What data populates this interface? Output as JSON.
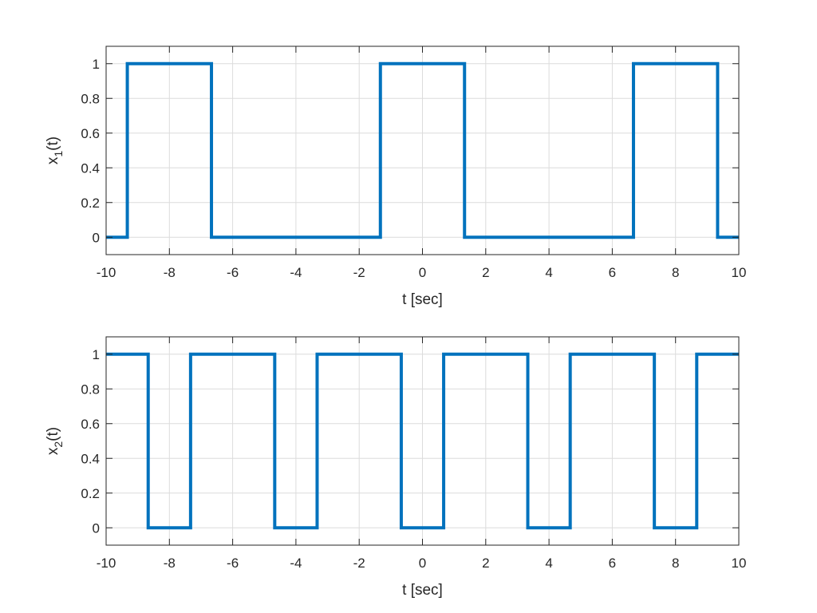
{
  "chart_data": [
    {
      "type": "line",
      "title": "",
      "xlabel": "t [sec]",
      "ylabel": {
        "base": "x",
        "subscript": "1",
        "suffix": "(t)"
      },
      "xlim": [
        -10,
        10
      ],
      "ylim": [
        -0.1,
        1.1
      ],
      "xticks": [
        -10,
        -8,
        -6,
        -4,
        -2,
        0,
        2,
        4,
        6,
        8,
        10
      ],
      "xtick_labels": [
        "-10",
        "-8",
        "-6",
        "-4",
        "-2",
        "0",
        "2",
        "4",
        "6",
        "8",
        "10"
      ],
      "yticks": [
        0,
        0.2,
        0.4,
        0.6,
        0.8,
        1
      ],
      "ytick_labels": [
        "0",
        "0.2",
        "0.4",
        "0.6",
        "0.8",
        "1"
      ],
      "grid": true,
      "color": "#0072BD",
      "series": [
        {
          "x": [
            -10,
            -9.33,
            -9.33,
            -6.67,
            -6.67,
            -1.33,
            -1.33,
            1.33,
            1.33,
            6.67,
            6.67,
            9.33,
            9.33,
            10
          ],
          "y": [
            0,
            0,
            1,
            1,
            0,
            0,
            1,
            1,
            0,
            0,
            1,
            1,
            0,
            0
          ]
        }
      ]
    },
    {
      "type": "line",
      "title": "",
      "xlabel": "t [sec]",
      "ylabel": {
        "base": "x",
        "subscript": "2",
        "suffix": "(t)"
      },
      "xlim": [
        -10,
        10
      ],
      "ylim": [
        -0.1,
        1.1
      ],
      "xticks": [
        -10,
        -8,
        -6,
        -4,
        -2,
        0,
        2,
        4,
        6,
        8,
        10
      ],
      "xtick_labels": [
        "-10",
        "-8",
        "-6",
        "-4",
        "-2",
        "0",
        "2",
        "4",
        "6",
        "8",
        "10"
      ],
      "yticks": [
        0,
        0.2,
        0.4,
        0.6,
        0.8,
        1
      ],
      "ytick_labels": [
        "0",
        "0.2",
        "0.4",
        "0.6",
        "0.8",
        "1"
      ],
      "grid": true,
      "color": "#0072BD",
      "series": [
        {
          "x": [
            -10,
            -8.67,
            -8.67,
            -7.33,
            -7.33,
            -4.67,
            -4.67,
            -3.33,
            -3.33,
            -0.67,
            -0.67,
            0.67,
            0.67,
            3.33,
            3.33,
            4.67,
            4.67,
            7.33,
            7.33,
            8.67,
            8.67,
            10
          ],
          "y": [
            1,
            1,
            0,
            0,
            1,
            1,
            0,
            0,
            1,
            1,
            0,
            0,
            1,
            1,
            0,
            0,
            1,
            1,
            0,
            0,
            1,
            1
          ]
        }
      ]
    }
  ]
}
